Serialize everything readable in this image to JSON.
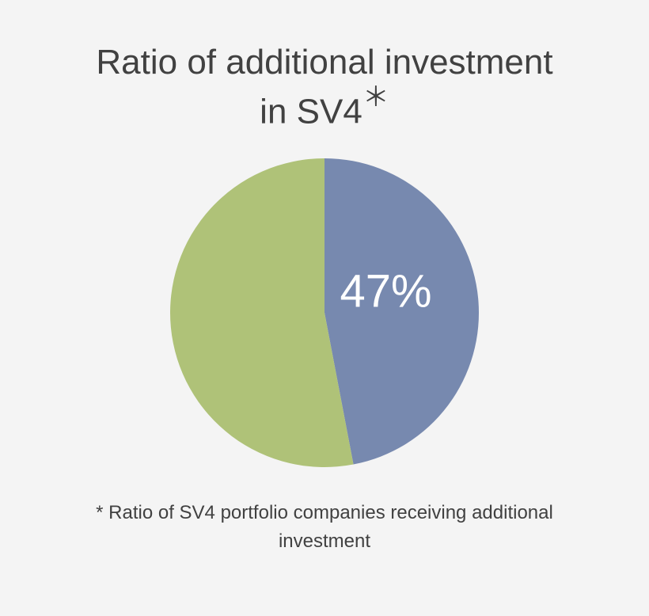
{
  "chart": {
    "type": "pie",
    "title_line1": "Ratio of additional investment",
    "title_line2": "in SV4",
    "title_asterisk": "＊",
    "title_color": "#414141",
    "title_fontsize": 44,
    "background_color": "#f4f4f4",
    "pie": {
      "diameter": 390,
      "slices": [
        {
          "value": 47,
          "color": "#7789af",
          "label": "47%",
          "label_fontsize": 58,
          "label_color": "#ffffff"
        },
        {
          "value": 53,
          "color": "#afc278",
          "label": null
        }
      ]
    },
    "footnote": "* Ratio of SV4 portfolio companies receiving additional investment",
    "footnote_color": "#414141",
    "footnote_fontsize": 24
  }
}
